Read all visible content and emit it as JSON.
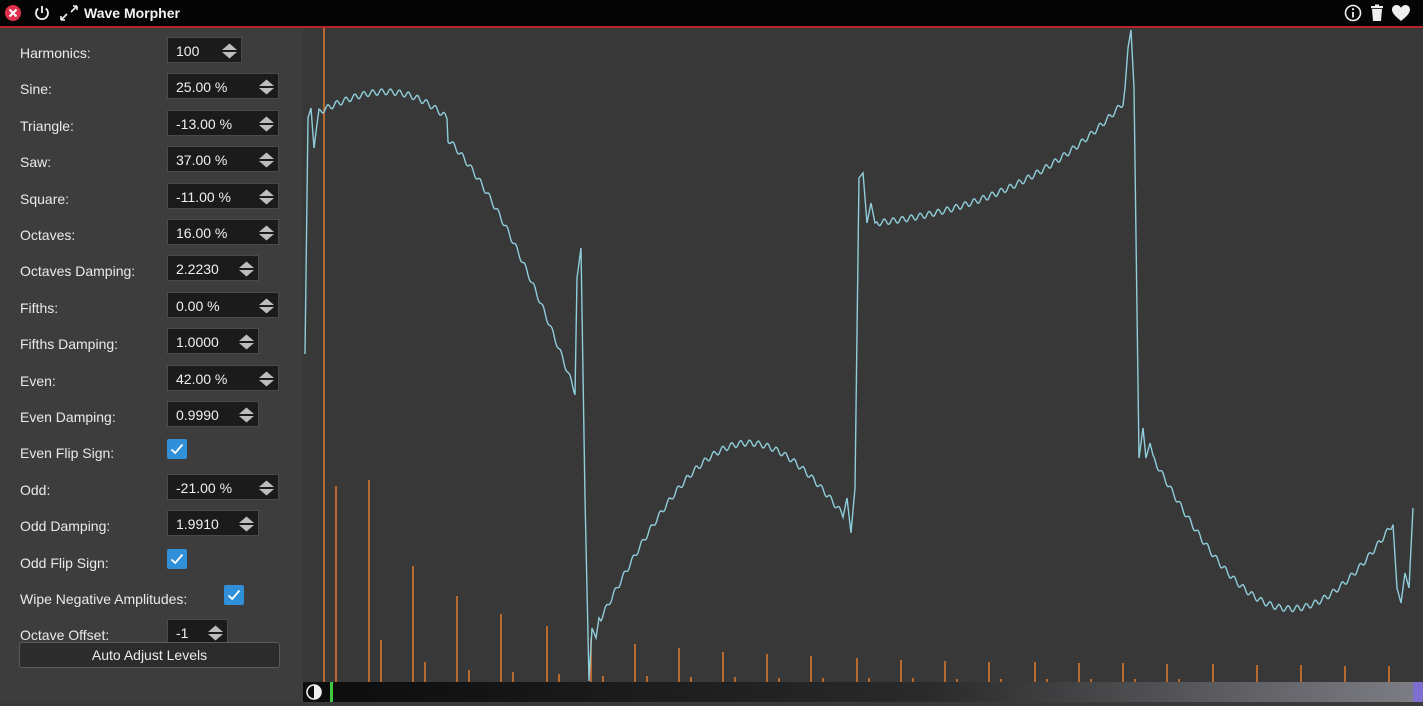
{
  "window": {
    "title": "Wave Morpher",
    "icons": [
      "close-icon",
      "power-icon",
      "expand-icon",
      "info-icon",
      "trash-icon",
      "heart-icon"
    ]
  },
  "params": [
    {
      "id": "harmonics",
      "label": "Harmonics:",
      "value": "100",
      "type": "spin"
    },
    {
      "id": "sine",
      "label": "Sine:",
      "value": "25.00 %",
      "type": "spin"
    },
    {
      "id": "triangle",
      "label": "Triangle:",
      "value": "-13.00 %",
      "type": "spin"
    },
    {
      "id": "saw",
      "label": "Saw:",
      "value": "37.00 %",
      "type": "spin"
    },
    {
      "id": "square",
      "label": "Square:",
      "value": "-11.00 %",
      "type": "spin"
    },
    {
      "id": "octaves",
      "label": "Octaves:",
      "value": "16.00 %",
      "type": "spin"
    },
    {
      "id": "octaves-damping",
      "label": "Octaves Damping:",
      "value": "2.2230",
      "type": "spin"
    },
    {
      "id": "fifths",
      "label": "Fifths:",
      "value": "0.00 %",
      "type": "spin"
    },
    {
      "id": "fifths-damping",
      "label": "Fifths Damping:",
      "value": "1.0000",
      "type": "spin"
    },
    {
      "id": "even",
      "label": "Even:",
      "value": "42.00 %",
      "type": "spin"
    },
    {
      "id": "even-damping",
      "label": "Even Damping:",
      "value": "0.9990",
      "type": "spin"
    },
    {
      "id": "even-flip-sign",
      "label": "Even Flip Sign:",
      "checked": true,
      "type": "check"
    },
    {
      "id": "odd",
      "label": "Odd:",
      "value": "-21.00 %",
      "type": "spin"
    },
    {
      "id": "odd-damping",
      "label": "Odd Damping:",
      "value": "1.9910",
      "type": "spin"
    },
    {
      "id": "odd-flip-sign",
      "label": "Odd Flip Sign:",
      "checked": true,
      "type": "check"
    },
    {
      "id": "wipe-negative-amplitudes",
      "label": "Wipe Negative Amplitudes:",
      "checked": true,
      "type": "check"
    },
    {
      "id": "octave-offset",
      "label": "Octave Offset:",
      "value": "-1",
      "type": "spin"
    }
  ],
  "auto_adjust_label": "Auto Adjust Levels",
  "colors": {
    "accent": "#b8232a",
    "waveform": "#8fcdda",
    "harmonic_bars": "#e07a2e",
    "checkbox": "#2f8fd8",
    "playhead": "#3ec93e"
  }
}
